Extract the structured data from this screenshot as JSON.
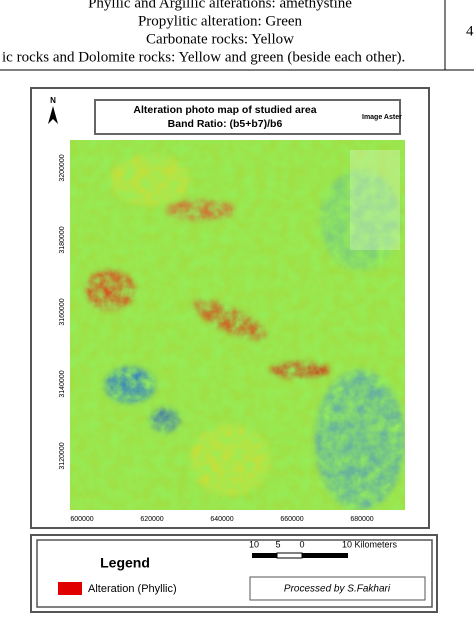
{
  "table": {
    "lines": [
      "Phyllic and Argillic alterations: amethystine",
      "Propylitic alteration: Green",
      "Carbonate rocks: Yellow",
      "ic rocks and Dolomite rocks: Yellow and green (beside each other)."
    ],
    "side": "4"
  },
  "figure": {
    "north": "N",
    "title": "Alteration photo map of studied area",
    "subtitle": "Band Ratio: (b5+b7)/b6",
    "source": "Image Aster",
    "y_labels": [
      "3200000",
      "3180000",
      "3160000",
      "3140000",
      "3120000"
    ],
    "x_labels": [
      "600000",
      "620000",
      "640000",
      "660000",
      "680000"
    ],
    "legend": {
      "title": "Legend",
      "item": "Alteration (Phyllic)",
      "scale": [
        "10",
        "5",
        "0",
        "10 Kilometers"
      ],
      "credit": "Processed by S.Fakhari"
    }
  }
}
